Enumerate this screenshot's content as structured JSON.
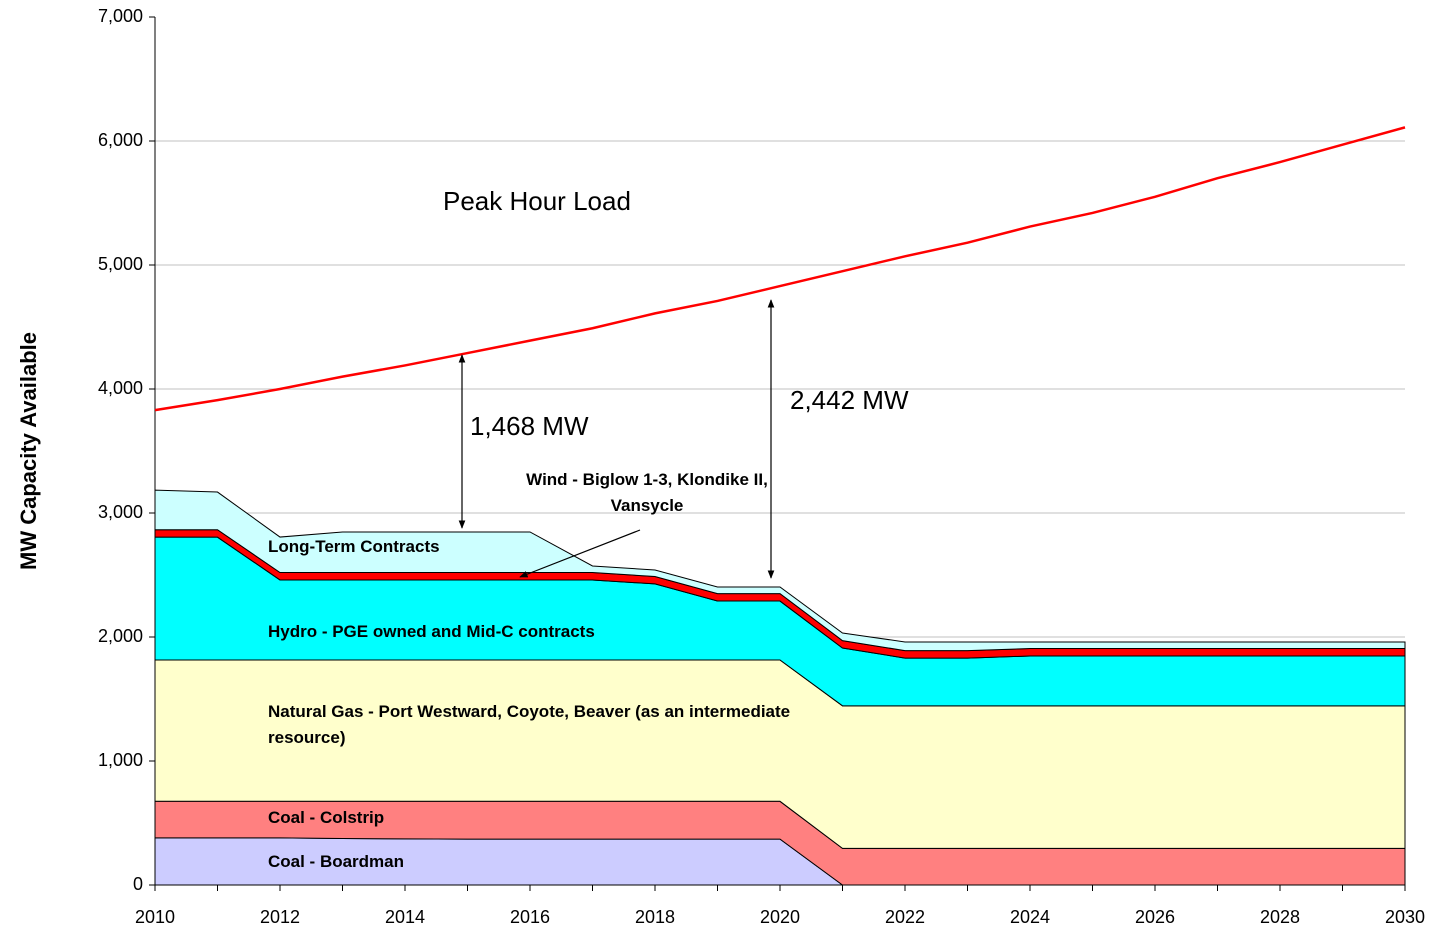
{
  "chart_data": {
    "type": "stacked-area",
    "y_label": "MW Capacity Available",
    "x": [
      2010,
      2011,
      2012,
      2013,
      2014,
      2015,
      2016,
      2017,
      2018,
      2019,
      2020,
      2021,
      2022,
      2023,
      2024,
      2025,
      2026,
      2027,
      2028,
      2029,
      2030
    ],
    "xlim": [
      2010,
      2030
    ],
    "xticks": [
      2010,
      2012,
      2014,
      2016,
      2018,
      2020,
      2022,
      2024,
      2026,
      2028,
      2030
    ],
    "ylim": [
      0,
      7000
    ],
    "yticks": [
      0,
      {
        "value": 1000,
        "label": "1,000"
      },
      {
        "value": 2000,
        "label": "2,000"
      },
      {
        "value": 3000,
        "label": "3,000"
      },
      {
        "value": 4000,
        "label": "4,000"
      },
      {
        "value": 5000,
        "label": "5,000"
      },
      {
        "value": 6000,
        "label": "6,000"
      },
      {
        "value": 7000,
        "label": "7,000"
      }
    ],
    "grid": true,
    "series": [
      {
        "name": "Coal - Boardman",
        "color": "#ccccff",
        "values": [
          380,
          380,
          380,
          375,
          372,
          370,
          370,
          370,
          370,
          370,
          370,
          0,
          0,
          0,
          0,
          0,
          0,
          0,
          0,
          0,
          0
        ]
      },
      {
        "name": "Coal - Colstrip",
        "color": "#ff8080",
        "values": [
          295,
          295,
          295,
          300,
          303,
          305,
          305,
          305,
          305,
          305,
          305,
          295,
          295,
          295,
          295,
          295,
          295,
          295,
          295,
          295,
          295
        ]
      },
      {
        "name": "Natural Gas - Port Westward, Coyote, Beaver (as an intermediate resource)",
        "color": "#ffffcc",
        "values": [
          1140,
          1140,
          1140,
          1140,
          1140,
          1140,
          1140,
          1140,
          1140,
          1140,
          1140,
          1150,
          1150,
          1150,
          1150,
          1150,
          1150,
          1150,
          1150,
          1150,
          1150
        ]
      },
      {
        "name": "Hydro - PGE owned and Mid-C contracts",
        "color": "#00ffff",
        "values": [
          990,
          990,
          645,
          645,
          645,
          645,
          645,
          645,
          613,
          475,
          475,
          466,
          385,
          385,
          402,
          402,
          402,
          402,
          402,
          402,
          402
        ]
      },
      {
        "name": "Wind - Biglow 1-3, Klondike II, Vansycle",
        "color": "#ff0000",
        "values": [
          60,
          60,
          60,
          60,
          60,
          60,
          60,
          60,
          60,
          60,
          60,
          60,
          60,
          60,
          60,
          60,
          60,
          60,
          60,
          60,
          60
        ]
      },
      {
        "name": "Long-Term Contracts",
        "color": "#ccffff",
        "values": [
          319,
          304,
          286,
          327,
          327,
          327,
          327,
          53,
          52,
          53,
          53,
          61,
          70,
          70,
          53,
          53,
          53,
          53,
          53,
          53,
          53
        ]
      },
      {
        "name": "Peak Hour Load",
        "color": "#ff0000",
        "type": "line",
        "values": [
          3830,
          3910,
          4000,
          4100,
          4190,
          4290,
          4390,
          4490,
          4610,
          4710,
          4830,
          4950,
          5070,
          5180,
          5310,
          5420,
          5550,
          5700,
          5830,
          5970,
          6110
        ]
      }
    ],
    "annotations": [
      "1,468 MW",
      "2,442 MW"
    ]
  }
}
